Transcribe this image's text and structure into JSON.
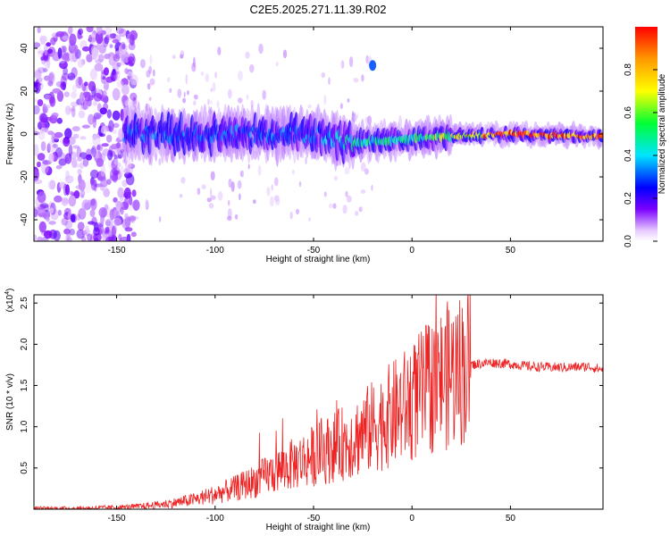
{
  "figure_title": "C2E5.2025.271.11.39.R02",
  "chart_data": [
    {
      "type": "heatmap",
      "title": "C2E5.2025.271.11.39.R02",
      "xlabel": "Height of straight line (km)",
      "ylabel": "Frequency (Hz)",
      "xlim": [
        -192,
        97
      ],
      "ylim": [
        -50,
        50
      ],
      "xticks": [
        -150,
        -100,
        -50,
        0,
        50
      ],
      "xtick_labels": [
        "-150",
        "-100",
        "-50",
        "0",
        "50"
      ],
      "yticks": [
        -40,
        -20,
        0,
        20,
        40
      ],
      "ytick_labels": [
        "-40",
        "-20",
        "0",
        "20",
        "40"
      ],
      "colorbar": {
        "label": "Normalized spectral amplitude",
        "range": [
          0,
          1
        ],
        "ticks": [
          0.0,
          0.2,
          0.4,
          0.6,
          0.8
        ],
        "tick_labels": [
          "0.0",
          "0.2",
          "0.4",
          "0.6",
          "0.8"
        ],
        "colormap": [
          "#ffffff",
          "#e6c9ff",
          "#7a00ff",
          "#0000ff",
          "#00e5ff",
          "#00ff33",
          "#ffff00",
          "#ff9900",
          "#ff0000"
        ]
      },
      "ridge": {
        "description_points": [
          {
            "x": -145,
            "y": 0,
            "amplitude": 0.3
          },
          {
            "x": -100,
            "y": 0,
            "amplitude": 0.3
          },
          {
            "x": -50,
            "y": 0,
            "amplitude": 0.32
          },
          {
            "x": -30,
            "y": -4,
            "amplitude": 0.45
          },
          {
            "x": 0,
            "y": -2,
            "amplitude": 0.5
          },
          {
            "x": 20,
            "y": -1,
            "amplitude": 0.65
          },
          {
            "x": 50,
            "y": 0,
            "amplitude": 0.95
          },
          {
            "x": 90,
            "y": -1,
            "amplitude": 0.95
          }
        ]
      },
      "noise_region": {
        "x_from": -192,
        "x_to": -140,
        "amplitude": 0.25
      },
      "annotation_blob": {
        "x": -20,
        "y": 32,
        "amplitude": 0.3
      }
    },
    {
      "type": "line",
      "xlabel": "Height of straight line (km)",
      "ylabel": "SNR (10 * v/v)",
      "scale_label": "(x10",
      "scale_exponent": "4",
      "xlim": [
        -192,
        97
      ],
      "ylim": [
        0,
        2.6
      ],
      "xticks": [
        -150,
        -100,
        -50,
        0,
        50
      ],
      "xtick_labels": [
        "-150",
        "-100",
        "-50",
        "0",
        "50"
      ],
      "yticks": [
        0.5,
        1.0,
        1.5,
        2.0,
        2.5
      ],
      "ytick_labels": [
        "0.5",
        "1.0",
        "1.5",
        "2.0",
        "2.5"
      ],
      "series": [
        {
          "name": "SNR",
          "color": "#ee2222",
          "x": [
            -192,
            -170,
            -150,
            -140,
            -130,
            -120,
            -110,
            -100,
            -90,
            -80,
            -70,
            -60,
            -50,
            -40,
            -30,
            -20,
            -10,
            0,
            10,
            20,
            30,
            40,
            50,
            60,
            70,
            80,
            90,
            95
          ],
          "y": [
            0.01,
            0.01,
            0.02,
            0.03,
            0.05,
            0.08,
            0.12,
            0.18,
            0.25,
            0.34,
            0.45,
            0.55,
            0.65,
            0.75,
            0.85,
            1.0,
            1.15,
            1.3,
            1.5,
            1.65,
            1.75,
            1.78,
            1.76,
            1.73,
            1.72,
            1.72,
            1.73,
            1.7
          ]
        }
      ]
    }
  ]
}
